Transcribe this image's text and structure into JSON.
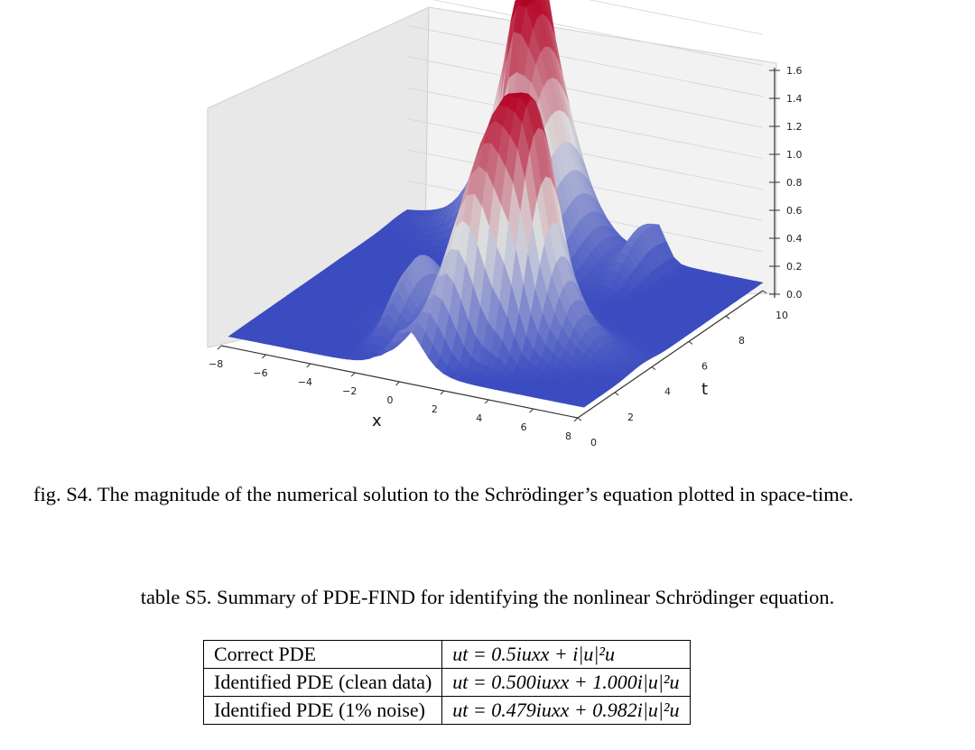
{
  "figure": {
    "axes": {
      "x_label": "x",
      "t_label": "t",
      "x_ticks": [
        "−8",
        "−6",
        "−4",
        "−2",
        "0",
        "2",
        "4",
        "6",
        "8"
      ],
      "t_ticks": [
        "0",
        "2",
        "4",
        "6",
        "8",
        "10"
      ],
      "z_ticks": [
        "0.0",
        "0.2",
        "0.4",
        "0.6",
        "0.8",
        "1.0",
        "1.2",
        "1.4",
        "1.6"
      ]
    },
    "colormap": [
      "#3b4cc0",
      "#dddddd",
      "#b40426"
    ],
    "zlim": [
      0,
      1.6
    ]
  },
  "caption": "fig. S4. The magnitude of the numerical solution to the Schrödinger’s equation plotted in space-time.",
  "table_caption": "table S5. Summary of PDE-FIND for identifying the nonlinear Schrödinger equation.",
  "table": {
    "rows": [
      {
        "label": "Correct PDE",
        "equation": "ut = 0.5iuxx + i|u|²u"
      },
      {
        "label": "Identified PDE (clean data)",
        "equation": "ut = 0.500iuxx + 1.000i|u|²u"
      },
      {
        "label": "Identified PDE (1% noise)",
        "equation": "ut = 0.479iuxx + 0.982i|u|²u"
      }
    ]
  }
}
